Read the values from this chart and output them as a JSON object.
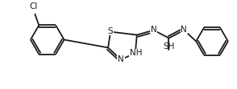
{
  "bg_color": "#ffffff",
  "line_color": "#1a1a1a",
  "line_width": 1.3,
  "font_size": 7.5,
  "fig_width": 2.94,
  "fig_height": 1.11,
  "dpi": 100,
  "atoms": {
    "Cl_label": "Cl",
    "S1_label": "S",
    "NH_label": "NH",
    "N3_label": "N",
    "N_thio_label": "N",
    "N2_thio_label": "N",
    "SH_label": "SH"
  }
}
